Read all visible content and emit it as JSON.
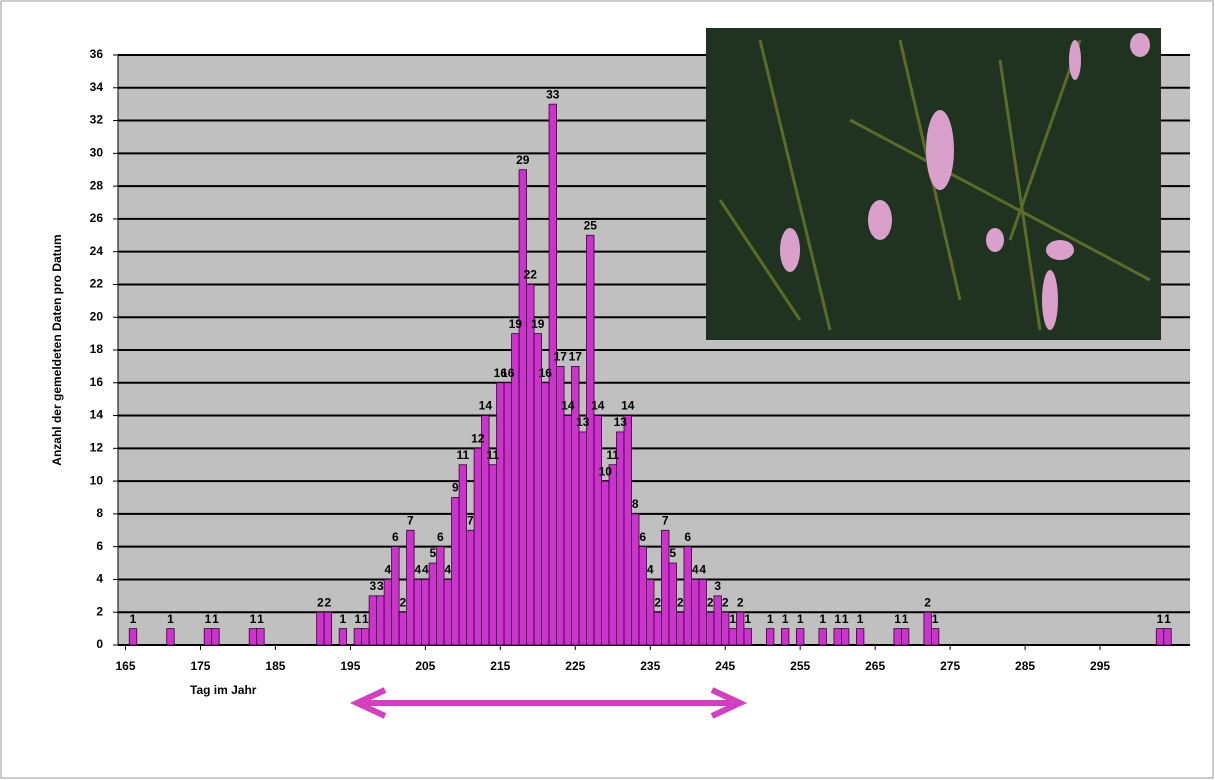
{
  "chart_data": {
    "type": "bar",
    "x_label": "Tag im Jahr",
    "y_label": "Anzahl der gemeldeten Daten pro Datum",
    "x": [
      166,
      171,
      176,
      177,
      182,
      183,
      191,
      192,
      194,
      196,
      197,
      198,
      199,
      200,
      201,
      202,
      203,
      204,
      205,
      206,
      207,
      208,
      209,
      210,
      211,
      212,
      213,
      214,
      215,
      216,
      217,
      218,
      219,
      220,
      221,
      222,
      223,
      224,
      225,
      226,
      227,
      228,
      229,
      230,
      231,
      232,
      233,
      234,
      235,
      236,
      237,
      238,
      239,
      240,
      241,
      242,
      243,
      244,
      245,
      246,
      247,
      248,
      251,
      253,
      255,
      258,
      260,
      261,
      263,
      268,
      269,
      272,
      273,
      303,
      304
    ],
    "values": [
      1,
      1,
      1,
      1,
      1,
      1,
      2,
      2,
      1,
      1,
      1,
      3,
      3,
      4,
      6,
      2,
      7,
      4,
      4,
      5,
      6,
      4,
      9,
      11,
      7,
      12,
      14,
      11,
      16,
      16,
      19,
      29,
      22,
      19,
      16,
      33,
      17,
      14,
      17,
      13,
      25,
      14,
      10,
      11,
      13,
      14,
      8,
      6,
      4,
      2,
      7,
      5,
      2,
      6,
      4,
      4,
      2,
      3,
      2,
      1,
      2,
      1,
      1,
      1,
      1,
      1,
      1,
      1,
      1,
      1,
      1,
      2,
      1,
      1,
      1
    ],
    "color": "#cc33cc",
    "xlim": [
      164,
      307
    ],
    "xticks": [
      165,
      175,
      185,
      195,
      205,
      215,
      225,
      235,
      245,
      255,
      265,
      275,
      285,
      295
    ],
    "ylim": [
      0,
      36
    ],
    "yticks": [
      0,
      2,
      4,
      6,
      8,
      10,
      12,
      14,
      16,
      18,
      20,
      22,
      24,
      26,
      28,
      30,
      32,
      34,
      36
    ],
    "grid": true
  }
}
